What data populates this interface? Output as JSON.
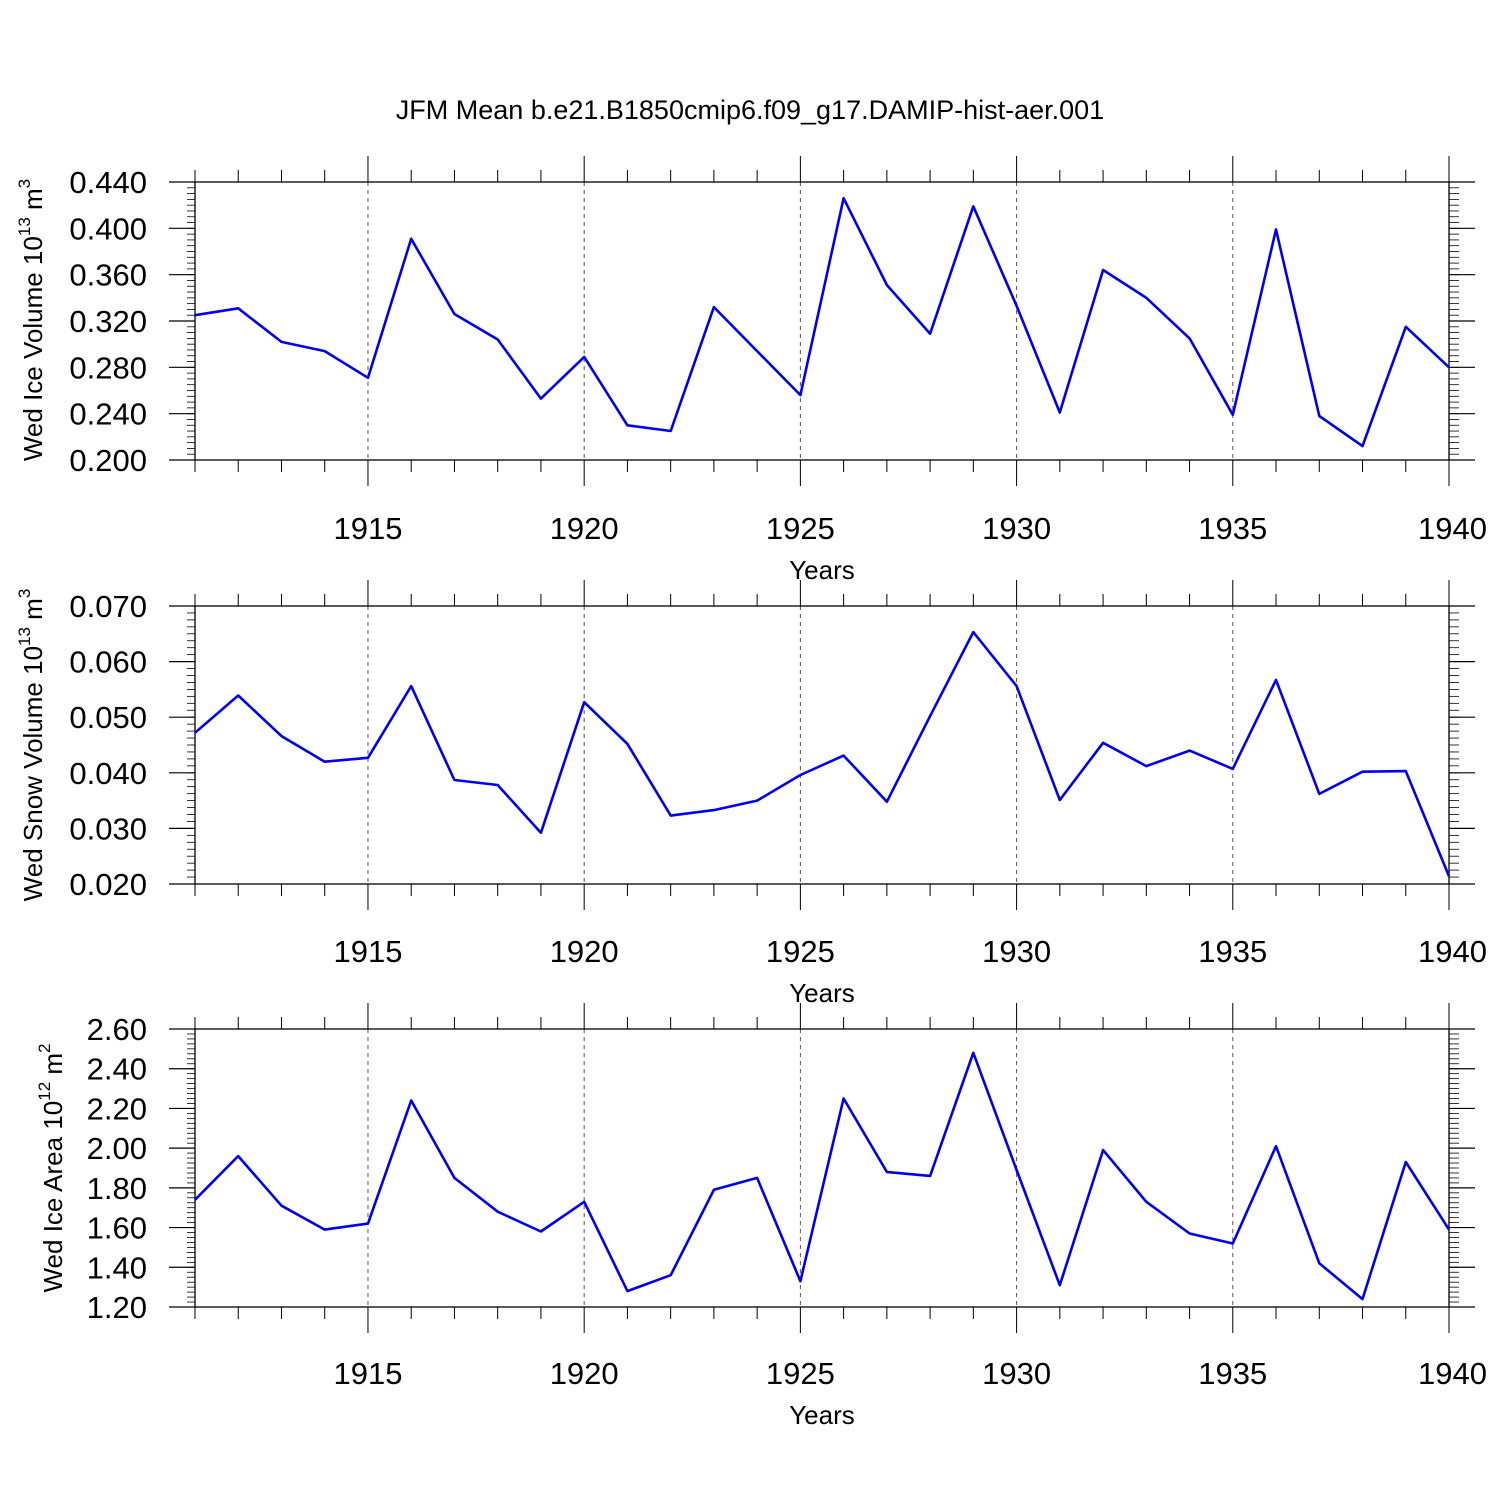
{
  "title": "JFM Mean b.e21.B1850cmip6.f09_g17.DAMIP-hist-aer.001",
  "colors": {
    "line": "#0000ee",
    "axis": "#000000",
    "grid": "#555555",
    "background": "#ffffff"
  },
  "chart_data": [
    {
      "type": "line",
      "ylabel": "Wed Ice Volume 10",
      "ylabel_sup": "13",
      "ylabel_unit": " m",
      "ylabel_unit_sup": "3",
      "xlabel": "Years",
      "xlim": [
        1911,
        1940
      ],
      "ylim": [
        0.2,
        0.44
      ],
      "xticks": [
        1915,
        1920,
        1925,
        1930,
        1935,
        1940
      ],
      "yticks": [
        0.2,
        0.24,
        0.28,
        0.32,
        0.36,
        0.4,
        0.44
      ],
      "ytick_labels": [
        "0.200",
        "0.240",
        "0.280",
        "0.320",
        "0.360",
        "0.400",
        "0.440"
      ],
      "grid": "vertical dashed at major x ticks",
      "x": [
        1911,
        1912,
        1913,
        1914,
        1915,
        1916,
        1917,
        1918,
        1919,
        1920,
        1921,
        1922,
        1923,
        1924,
        1925,
        1926,
        1927,
        1928,
        1929,
        1930,
        1931,
        1932,
        1933,
        1934,
        1935,
        1936,
        1937,
        1938,
        1939,
        1940
      ],
      "series": [
        {
          "name": "Wed Ice Volume",
          "values": [
            0.325,
            0.331,
            0.302,
            0.294,
            0.271,
            0.391,
            0.326,
            0.304,
            0.253,
            0.289,
            0.23,
            0.225,
            0.332,
            0.294,
            0.256,
            0.426,
            0.351,
            0.309,
            0.419,
            0.333,
            0.241,
            0.364,
            0.34,
            0.305,
            0.239,
            0.399,
            0.238,
            0.212,
            0.315,
            0.28
          ]
        }
      ]
    },
    {
      "type": "line",
      "ylabel": "Wed Snow Volume 10",
      "ylabel_sup": "13",
      "ylabel_unit": " m",
      "ylabel_unit_sup": "3",
      "xlabel": "Years",
      "xlim": [
        1911,
        1940
      ],
      "ylim": [
        0.02,
        0.07
      ],
      "xticks": [
        1915,
        1920,
        1925,
        1930,
        1935,
        1940
      ],
      "yticks": [
        0.02,
        0.03,
        0.04,
        0.05,
        0.06,
        0.07
      ],
      "ytick_labels": [
        "0.020",
        "0.030",
        "0.040",
        "0.050",
        "0.060",
        "0.070"
      ],
      "grid": "vertical dashed at major x ticks",
      "x": [
        1911,
        1912,
        1913,
        1914,
        1915,
        1916,
        1917,
        1918,
        1919,
        1920,
        1921,
        1922,
        1923,
        1924,
        1925,
        1926,
        1927,
        1928,
        1929,
        1930,
        1931,
        1932,
        1933,
        1934,
        1935,
        1936,
        1937,
        1938,
        1939,
        1940
      ],
      "series": [
        {
          "name": "Wed Snow Volume",
          "values": [
            0.0472,
            0.0539,
            0.0466,
            0.042,
            0.0427,
            0.0556,
            0.0387,
            0.0378,
            0.0292,
            0.0527,
            0.0452,
            0.0323,
            0.0333,
            0.035,
            0.0396,
            0.0431,
            0.0348,
            0.0502,
            0.0653,
            0.0556,
            0.0351,
            0.0454,
            0.0412,
            0.044,
            0.0407,
            0.0567,
            0.0362,
            0.0402,
            0.0403,
            0.0214
          ]
        }
      ]
    },
    {
      "type": "line",
      "ylabel": "Wed Ice Area 10",
      "ylabel_sup": "12",
      "ylabel_unit": " m",
      "ylabel_unit_sup": "2",
      "xlabel": "Years",
      "xlim": [
        1911,
        1940
      ],
      "ylim": [
        1.2,
        2.6
      ],
      "xticks": [
        1915,
        1920,
        1925,
        1930,
        1935,
        1940
      ],
      "yticks": [
        1.2,
        1.4,
        1.6,
        1.8,
        2.0,
        2.2,
        2.4,
        2.6
      ],
      "ytick_labels": [
        "1.20",
        "1.40",
        "1.60",
        "1.80",
        "2.00",
        "2.20",
        "2.40",
        "2.60"
      ],
      "grid": "vertical dashed at major x ticks",
      "x": [
        1911,
        1912,
        1913,
        1914,
        1915,
        1916,
        1917,
        1918,
        1919,
        1920,
        1921,
        1922,
        1923,
        1924,
        1925,
        1926,
        1927,
        1928,
        1929,
        1930,
        1931,
        1932,
        1933,
        1934,
        1935,
        1936,
        1937,
        1938,
        1939,
        1940
      ],
      "series": [
        {
          "name": "Wed Ice Area",
          "values": [
            1.74,
            1.96,
            1.71,
            1.59,
            1.62,
            2.24,
            1.85,
            1.68,
            1.58,
            1.73,
            1.28,
            1.36,
            1.79,
            1.85,
            1.33,
            2.25,
            1.88,
            1.86,
            2.48,
            1.89,
            1.31,
            1.99,
            1.73,
            1.57,
            1.52,
            2.01,
            1.42,
            1.24,
            1.93,
            1.59
          ]
        }
      ]
    }
  ]
}
